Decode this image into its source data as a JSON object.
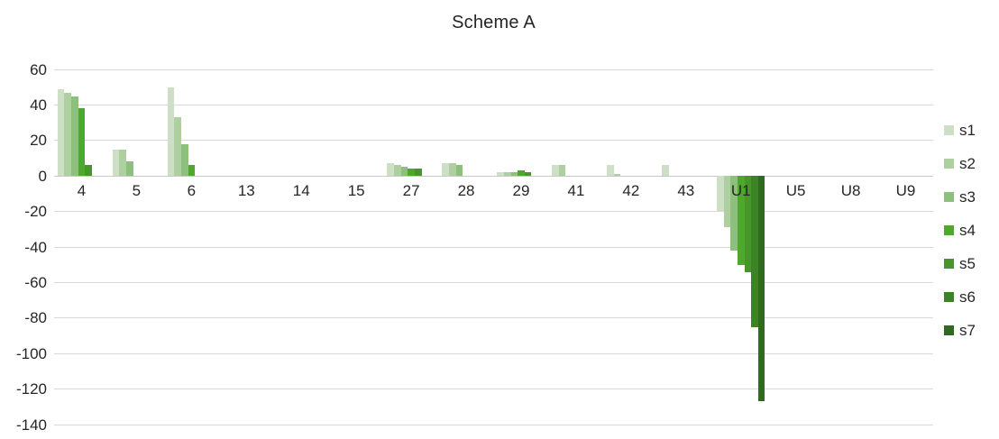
{
  "title": "Scheme A",
  "chart_data": {
    "type": "bar",
    "title": "Scheme A",
    "categories": [
      "4",
      "5",
      "6",
      "13",
      "14",
      "15",
      "27",
      "28",
      "29",
      "41",
      "42",
      "43",
      "U1",
      "U5",
      "U8",
      "U9"
    ],
    "series": [
      {
        "name": "s1",
        "color": "#cde0c5",
        "values": [
          49,
          15,
          50,
          0,
          0,
          0,
          7,
          7,
          2,
          6,
          6,
          6,
          -20,
          0,
          0,
          0
        ]
      },
      {
        "name": "s2",
        "color": "#aed0a0",
        "values": [
          47,
          15,
          33,
          0,
          0,
          0,
          6,
          7,
          2,
          6,
          1,
          0,
          -29,
          0,
          0,
          0
        ]
      },
      {
        "name": "s3",
        "color": "#8cc07c",
        "values": [
          45,
          8,
          18,
          0,
          0,
          0,
          5,
          6,
          2,
          0,
          0,
          0,
          -42,
          0,
          0,
          0
        ]
      },
      {
        "name": "s4",
        "color": "#4fa82e",
        "values": [
          38,
          0,
          6,
          0,
          0,
          0,
          4,
          0,
          3,
          0,
          0,
          0,
          -50,
          0,
          0,
          0
        ]
      },
      {
        "name": "s5",
        "color": "#46962a",
        "values": [
          6,
          0,
          0,
          0,
          0,
          0,
          4,
          0,
          2,
          0,
          0,
          0,
          -54,
          0,
          0,
          0
        ]
      },
      {
        "name": "s6",
        "color": "#3c8325",
        "values": [
          0,
          0,
          0,
          0,
          0,
          0,
          0,
          0,
          0,
          0,
          0,
          0,
          -85,
          0,
          0,
          0
        ]
      },
      {
        "name": "s7",
        "color": "#2f6a1e",
        "values": [
          0,
          0,
          0,
          0,
          0,
          0,
          0,
          0,
          0,
          0,
          0,
          0,
          -127,
          0,
          0,
          0
        ]
      }
    ],
    "ylim": [
      -140,
      60
    ],
    "ytick_step": 20,
    "ytick_labels": [
      "60",
      "40",
      "20",
      "0",
      "-20",
      "-40",
      "-60",
      "-80",
      "-100",
      "-120",
      "-140"
    ],
    "grid": "horizontal",
    "legend_position": "right",
    "legend_labels": [
      "s1",
      "s2",
      "s3",
      "s4",
      "s5",
      "s6",
      "s7"
    ],
    "xlabel": "",
    "ylabel": "",
    "background_color": "#ffffff",
    "grid_color": "#d9d9d9",
    "axis_color": "#c8c8c8",
    "text_color": "#262626"
  }
}
